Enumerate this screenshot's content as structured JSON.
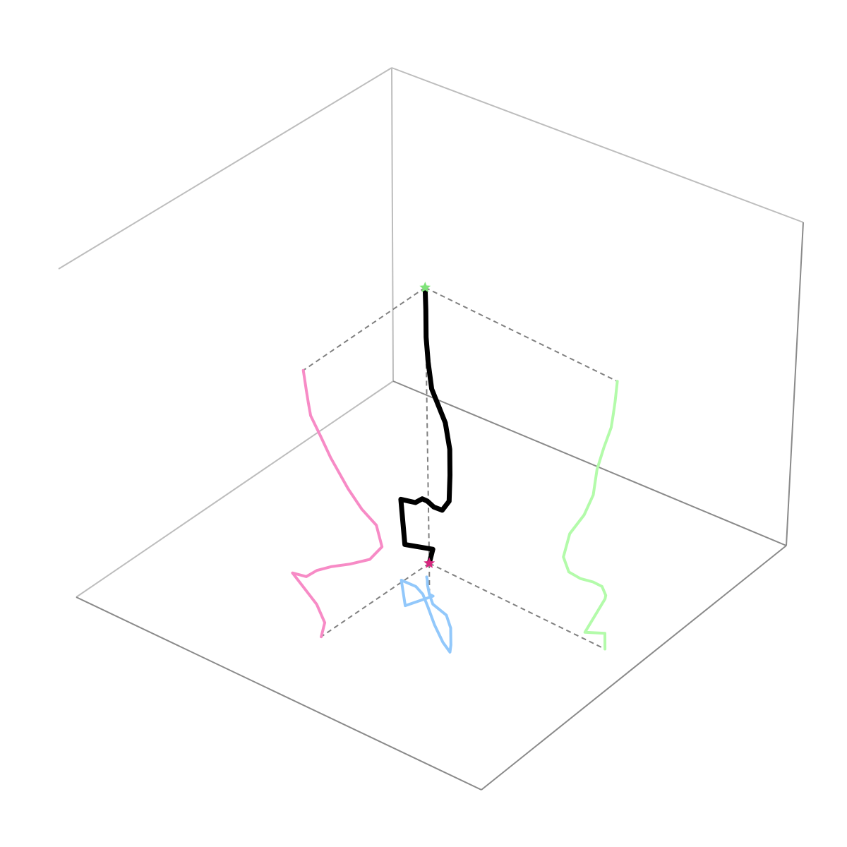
{
  "chart_data": {
    "type": "line",
    "projection": "3d",
    "title": "",
    "grid": false,
    "ticks": false,
    "colors": {
      "trajectory": "#000000",
      "projection_xz": "#f78bc6",
      "projection_yz": "#b3fbaa",
      "projection_xy": "#92c8fb",
      "start_marker": "#d6277f",
      "end_marker": "#7fe37a",
      "guides": "#808080",
      "box_back": "#bdbdbd",
      "box_front": "#8a8a8a"
    },
    "series": [
      {
        "role": "trajectory",
        "points": [
          [
            0.012,
            0.984,
            0.0
          ],
          [
            -0.009,
            0.984,
            0.061
          ],
          [
            0.037,
            1.103,
            0.117
          ],
          [
            0.176,
            0.982,
            0.193
          ],
          [
            0.096,
            0.978,
            0.205
          ],
          [
            0.035,
            1.0,
            0.249
          ],
          [
            -0.046,
            1.053,
            0.29
          ],
          [
            -0.156,
            1.128,
            0.336
          ],
          [
            -0.271,
            1.197,
            0.392
          ],
          [
            -0.342,
            1.229,
            0.464
          ],
          [
            -0.31,
            1.19,
            0.537
          ],
          [
            -0.226,
            1.104,
            0.572
          ],
          [
            -0.148,
            1.049,
            0.625
          ],
          [
            -0.048,
            1.026,
            0.713
          ],
          [
            0.011,
            0.985,
            0.779
          ],
          [
            0.066,
            0.94,
            0.838
          ],
          [
            0.079,
            0.927,
            0.884
          ],
          [
            0.09,
            0.916,
            0.926
          ],
          [
            0.107,
            0.902,
            1.0
          ]
        ]
      }
    ],
    "markers": [
      {
        "role": "start",
        "symbol": "star",
        "at": [
          0.012,
          0.984,
          0.0
        ]
      },
      {
        "role": "end",
        "symbol": "star",
        "at": [
          0.107,
          0.902,
          1.0
        ]
      }
    ],
    "projections": [
      "xz-wall",
      "yz-wall",
      "xy-floor"
    ]
  }
}
